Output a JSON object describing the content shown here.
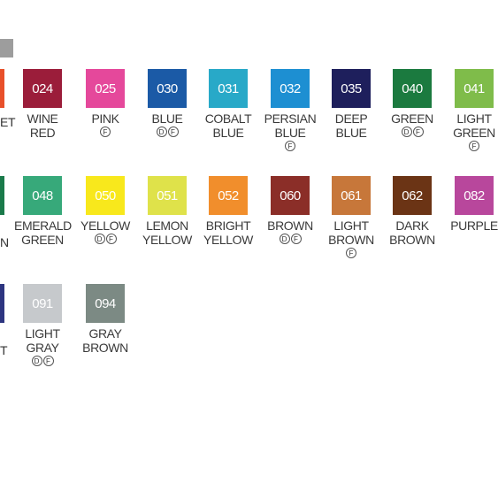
{
  "edge_labels": {
    "row1": "ET",
    "row2": "N",
    "row3": "T"
  },
  "rows": [
    [
      {
        "code": "024",
        "name": "WINE RED",
        "color": "#9b1d3a",
        "marks": []
      },
      {
        "code": "025",
        "name": "PINK",
        "color": "#e5489b",
        "marks": [
          "F"
        ]
      },
      {
        "code": "030",
        "name": "BLUE",
        "color": "#1b5aa6",
        "marks": [
          "D",
          "F"
        ]
      },
      {
        "code": "031",
        "name": "COBALT\nBLUE",
        "color": "#28a9c8",
        "marks": []
      },
      {
        "code": "032",
        "name": "PERSIAN\nBLUE",
        "color": "#1d8fd2",
        "marks": [
          "F"
        ]
      },
      {
        "code": "035",
        "name": "DEEP\nBLUE",
        "color": "#1e1f5c",
        "marks": []
      },
      {
        "code": "040",
        "name": "GREEN",
        "color": "#1b7a3f",
        "marks": [
          "D",
          "F"
        ]
      },
      {
        "code": "041",
        "name": "LIGHT\nGREEN",
        "color": "#7fbc4a",
        "marks": [
          "F"
        ]
      }
    ],
    [
      {
        "code": "048",
        "name": "EMERALD\nGREEN",
        "color": "#37a97a",
        "marks": []
      },
      {
        "code": "050",
        "name": "YELLOW",
        "color": "#f8e81c",
        "marks": [
          "D",
          "F"
        ]
      },
      {
        "code": "051",
        "name": "LEMON\nYELLOW",
        "color": "#dfe24a",
        "marks": []
      },
      {
        "code": "052",
        "name": "BRIGHT\nYELLOW",
        "color": "#f18e2c",
        "marks": []
      },
      {
        "code": "060",
        "name": "BROWN",
        "color": "#8b2e28",
        "marks": [
          "D",
          "F"
        ]
      },
      {
        "code": "061",
        "name": "LIGHT\nBROWN",
        "color": "#c7773a",
        "marks": [
          "F"
        ]
      },
      {
        "code": "062",
        "name": "DARK\nBROWN",
        "color": "#6b3415",
        "marks": []
      },
      {
        "code": "082",
        "name": "PURPLE",
        "color": "#b8479c",
        "marks": []
      }
    ],
    [
      {
        "code": "091",
        "name": "LIGHT\nGRAY",
        "color": "#c6c9cc",
        "marks": [
          "D",
          "F"
        ]
      },
      {
        "code": "094",
        "name": "GRAY\nBROWN",
        "color": "#7c8a84",
        "marks": []
      }
    ]
  ]
}
